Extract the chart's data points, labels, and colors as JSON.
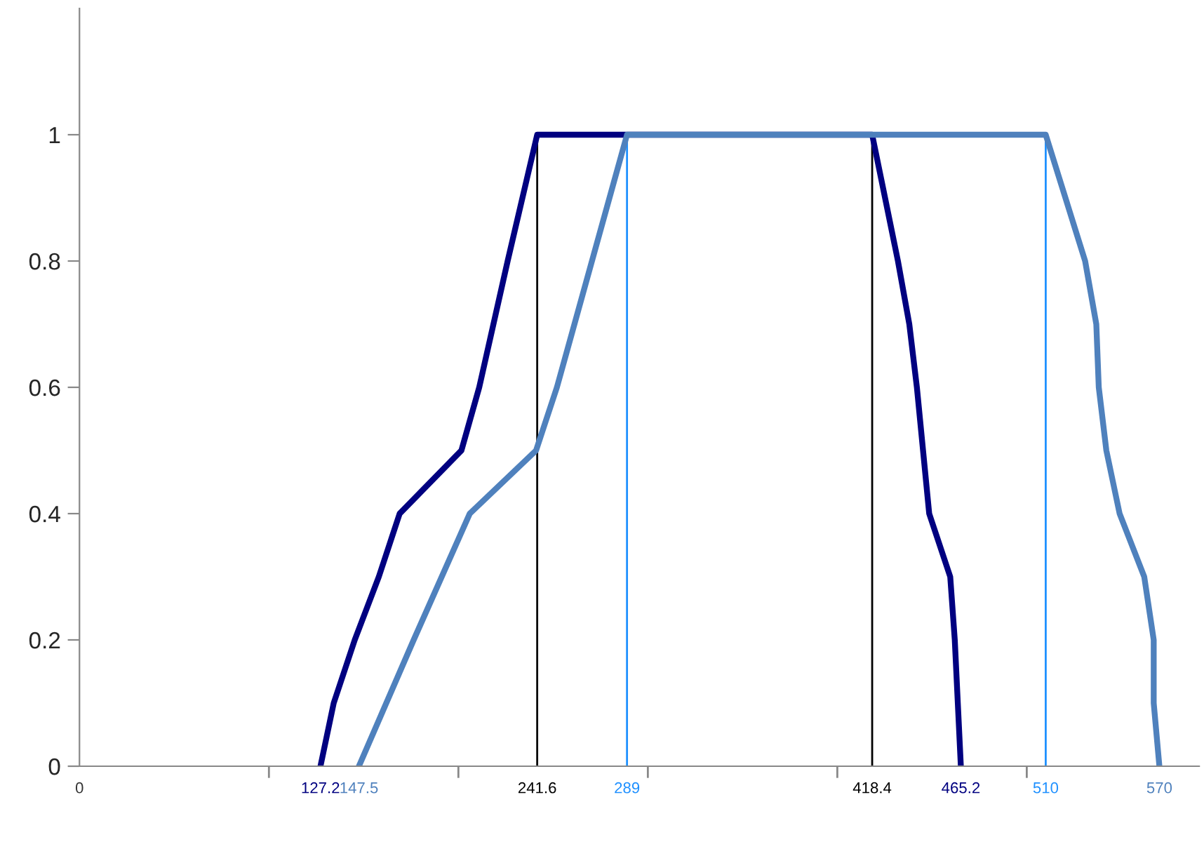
{
  "chart_data": {
    "type": "line",
    "xlim": [
      0,
      591
    ],
    "ylim": [
      0,
      1.2
    ],
    "xticks": [
      0,
      127.2,
      147.5,
      241.6,
      289,
      418.4,
      465.2,
      510,
      570,
      {
        "value": 100,
        "label": null
      },
      {
        "value": 200,
        "label": null
      },
      {
        "value": 300,
        "label": null
      },
      {
        "value": 400,
        "label": null
      },
      {
        "value": 500,
        "label": null
      }
    ],
    "yticks": [
      0,
      0.2,
      0.4,
      0.6,
      0.8,
      1
    ],
    "grid": false,
    "marker": "none",
    "line_style": "solid",
    "ref_lines": [
      {
        "axis": "x",
        "value": 241.6,
        "color": "#000000"
      },
      {
        "axis": "x",
        "value": 289,
        "color": "#1e90ff"
      },
      {
        "axis": "x",
        "value": 418.4,
        "color": "#000000"
      },
      {
        "axis": "x",
        "value": 510,
        "color": "#1e90ff"
      }
    ],
    "series": [
      {
        "color": "#000080",
        "x": [
          127.2,
          134.2,
          145.3,
          158,
          169,
          201.6,
          211,
          226,
          241.6,
          418.4,
          432,
          438,
          442,
          448.5,
          459.6,
          462,
          465.2
        ],
        "values": [
          0,
          0.1,
          0.2,
          0.3,
          0.4,
          0.5,
          0.6,
          0.8,
          1,
          1,
          0.8,
          0.7,
          0.6,
          0.4,
          0.3,
          0.2,
          0
        ]
      },
      {
        "color": "#4f81bd",
        "x": [
          147.5,
          176.4,
          206,
          241,
          252,
          289,
          510,
          530.8,
          536.7,
          538,
          542,
          549,
          562,
          567,
          567,
          570
        ],
        "values": [
          0,
          0.2,
          0.4,
          0.5,
          0.6,
          1,
          1,
          0.8,
          0.7,
          0.6,
          0.5,
          0.4,
          0.3,
          0.2,
          0.1,
          0
        ]
      }
    ]
  }
}
